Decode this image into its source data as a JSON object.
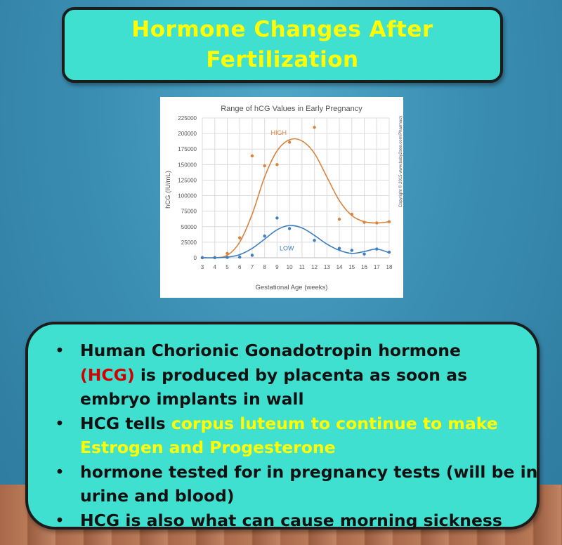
{
  "title": {
    "line1": "Hormone Changes After",
    "line2": "Fertilization"
  },
  "chart_data": {
    "type": "scatter",
    "title": "Range of hCG Values in Early Pregnancy",
    "xlabel": "Gestational Age (weeks)",
    "ylabel": "hCG (IU/mL)",
    "x_ticks": [
      "3",
      "4",
      "5",
      "6",
      "7",
      "8",
      "9",
      "10",
      "11",
      "12",
      "13",
      "14",
      "15",
      "16",
      "17",
      "18"
    ],
    "y_ticks": [
      "0",
      "25000",
      "50000",
      "75000",
      "100000",
      "125000",
      "150000",
      "175000",
      "200000",
      "225000"
    ],
    "xlim": [
      3,
      18
    ],
    "ylim": [
      0,
      225000
    ],
    "grid": true,
    "annotations": [
      "HIGH",
      "LOW"
    ],
    "copyright": "Copyright © 2015 www.baby2see.com/Pharmacy",
    "series": [
      {
        "name": "HIGH",
        "color": "#d9843e",
        "x": [
          3,
          4,
          5,
          6,
          7,
          8,
          9,
          10,
          12,
          14,
          15,
          16,
          17,
          18
        ],
        "y": [
          200,
          400,
          7000,
          32000,
          164000,
          148000,
          150000,
          186000,
          210000,
          62000,
          70000,
          57000,
          56000,
          58000
        ]
      },
      {
        "name": "LOW",
        "color": "#3d7fc1",
        "x": [
          3,
          4,
          5,
          6,
          7,
          8,
          9,
          10,
          12,
          14,
          15,
          16,
          17,
          18
        ],
        "y": [
          50,
          100,
          500,
          1000,
          4000,
          35000,
          64000,
          47000,
          28000,
          15000,
          12000,
          6000,
          14000,
          9000
        ]
      }
    ]
  },
  "bullets": {
    "b1_text_a": "Human Chorionic Gonadotropin hormone",
    "b1_highlight": "(HCG)",
    "b1_text_b": " is produced by placenta as soon as embryo implants in wall",
    "b2_text_a": "HCG tells ",
    "b2_highlight": "corpus luteum to continue to make Estrogen and Progesterone",
    "b3_text": "hormone tested for in pregnancy tests (will be in urine and blood)",
    "b4_text": "HCG is also what can cause morning sickness",
    "bullet_char": "•"
  }
}
